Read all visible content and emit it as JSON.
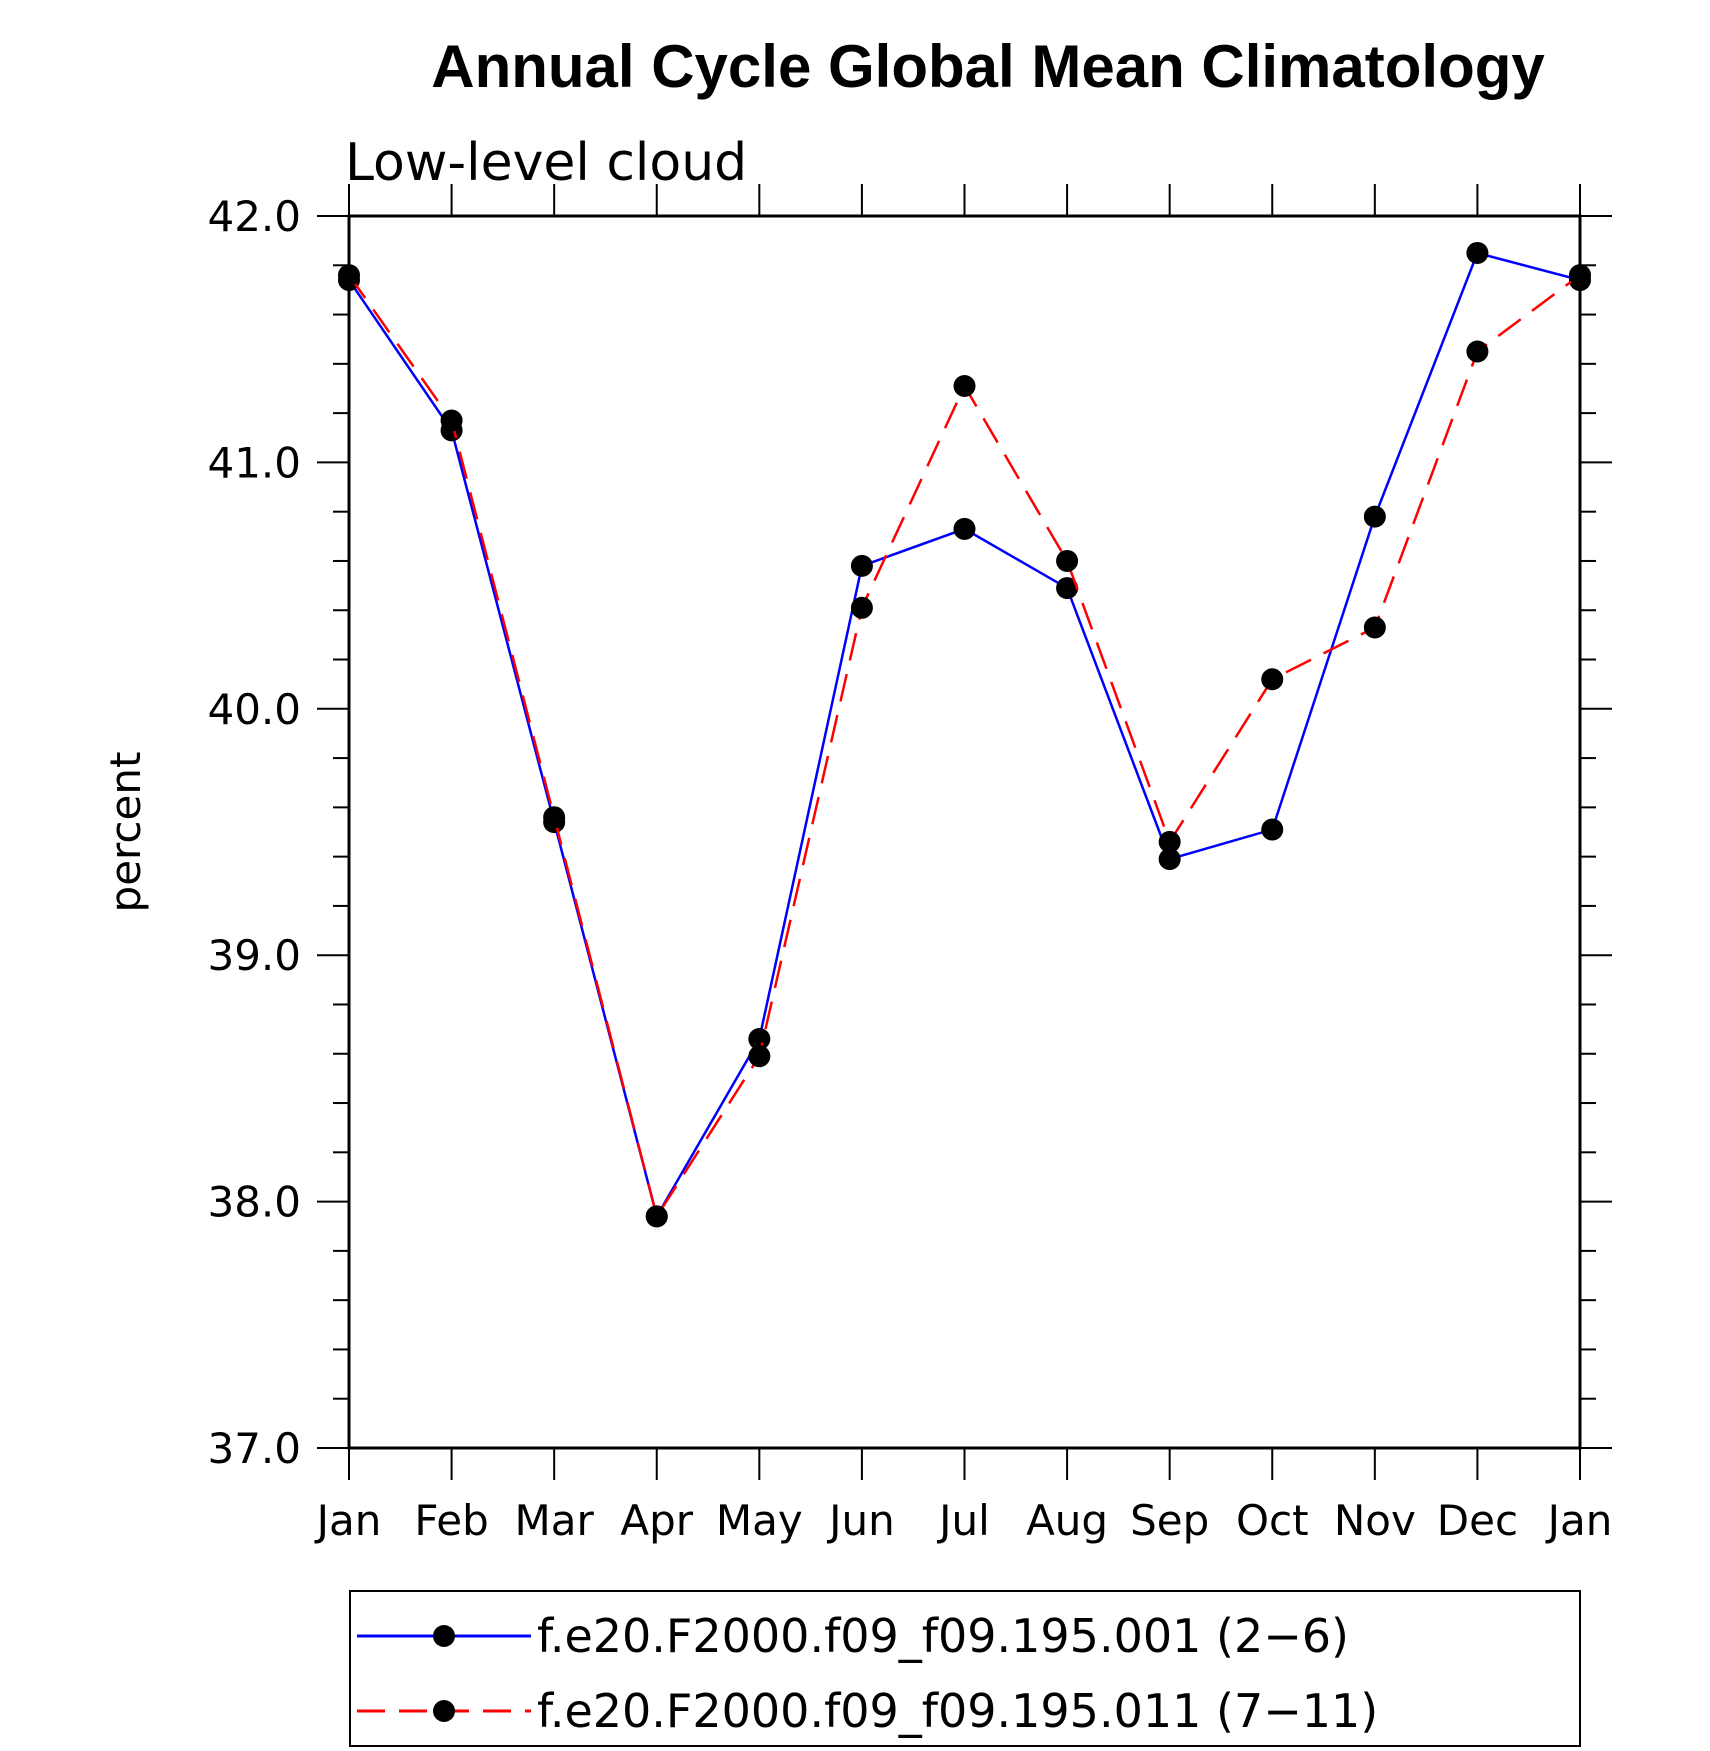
{
  "chart_data": {
    "type": "line",
    "title": "Annual Cycle Global Mean Climatology",
    "subtitle": "Low-level cloud",
    "xlabel": "",
    "ylabel": "percent",
    "categories": [
      "Jan",
      "Feb",
      "Mar",
      "Apr",
      "May",
      "Jun",
      "Jul",
      "Aug",
      "Sep",
      "Oct",
      "Nov",
      "Dec",
      "Jan"
    ],
    "ylim": [
      37.0,
      42.0
    ],
    "yticks": [
      "37.0",
      "38.0",
      "39.0",
      "40.0",
      "41.0",
      "42.0"
    ],
    "grid": false,
    "legend_position": "bottom",
    "series": [
      {
        "name": "f.e20.F2000.f09_f09.195.001 (2−6)",
        "color": "#0000ff",
        "line_style": "solid",
        "marker": "filled-circle",
        "values": [
          41.74,
          41.13,
          39.54,
          37.94,
          38.66,
          40.58,
          40.73,
          40.49,
          39.39,
          39.51,
          40.78,
          41.85,
          41.74
        ]
      },
      {
        "name": "f.e20.F2000.f09_f09.195.011 (7−11)",
        "color": "#ff0000",
        "line_style": "dashed",
        "marker": "filled-circle",
        "values": [
          41.76,
          41.17,
          39.56,
          37.94,
          38.59,
          40.41,
          41.31,
          40.6,
          39.46,
          40.12,
          40.33,
          41.45,
          41.76
        ]
      }
    ]
  }
}
